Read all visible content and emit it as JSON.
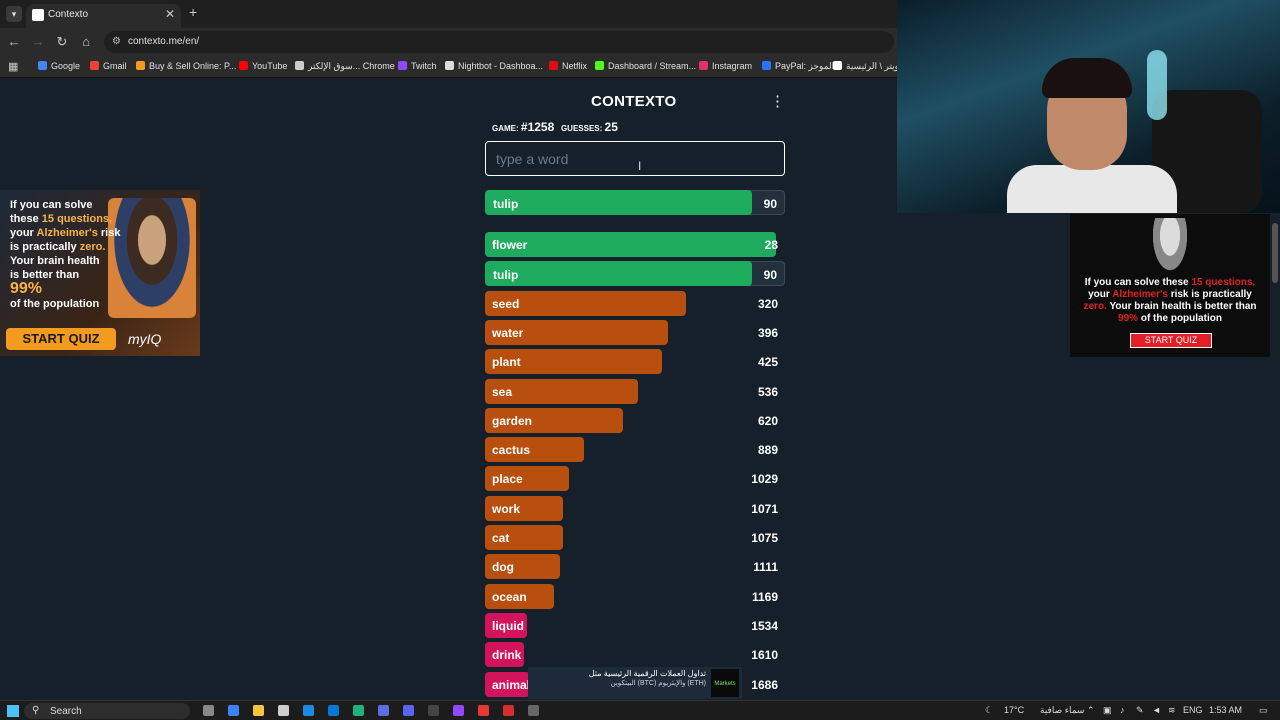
{
  "browser": {
    "tab_title": "Contexto",
    "url": "contexto.me/en/",
    "bookmarks": [
      {
        "label": "Google",
        "color": "#4285f4"
      },
      {
        "label": "Gmail",
        "color": "#ea4335"
      },
      {
        "label": "Buy & Sell Online: P...",
        "color": "#f29b1f"
      },
      {
        "label": "YouTube",
        "color": "#ff0000"
      },
      {
        "label": "سوق الإلكتر... Chrome",
        "color": "#cccccc"
      },
      {
        "label": "Twitch",
        "color": "#9146ff"
      },
      {
        "label": "Nightbot - Dashboa...",
        "color": "#dddddd"
      },
      {
        "label": "Netflix",
        "color": "#e50914"
      },
      {
        "label": "Dashboard / Stream...",
        "color": "#53fc18"
      },
      {
        "label": "Instagram",
        "color": "#e1306c"
      },
      {
        "label": "PayPal: الموجز",
        "color": "#2b73ff"
      },
      {
        "label": "تويتر \\ الرئيسية",
        "color": "#ffffff"
      }
    ]
  },
  "game": {
    "title": "CONTEXTO",
    "game_label": "GAME:",
    "game_number": "#1258",
    "guesses_label": "GUESSES:",
    "guesses_count": "25",
    "input_placeholder": "type a word",
    "last_guess": {
      "word": "tulip",
      "rank": "90",
      "fill": 0.89,
      "color": "#1fab5e"
    },
    "guesses": [
      {
        "word": "flower",
        "rank": "28",
        "fill": 0.97,
        "color": "#1fab5e"
      },
      {
        "word": "tulip",
        "rank": "90",
        "fill": 0.89,
        "color": "#1fab5e"
      },
      {
        "word": "seed",
        "rank": "320",
        "fill": 0.67,
        "color": "#b94f0e"
      },
      {
        "word": "water",
        "rank": "396",
        "fill": 0.61,
        "color": "#b94f0e"
      },
      {
        "word": "plant",
        "rank": "425",
        "fill": 0.59,
        "color": "#b94f0e"
      },
      {
        "word": "sea",
        "rank": "536",
        "fill": 0.51,
        "color": "#b94f0e"
      },
      {
        "word": "garden",
        "rank": "620",
        "fill": 0.46,
        "color": "#b94f0e"
      },
      {
        "word": "cactus",
        "rank": "889",
        "fill": 0.33,
        "color": "#b94f0e"
      },
      {
        "word": "place",
        "rank": "1029",
        "fill": 0.28,
        "color": "#b94f0e"
      },
      {
        "word": "work",
        "rank": "1071",
        "fill": 0.26,
        "color": "#b94f0e"
      },
      {
        "word": "cat",
        "rank": "1075",
        "fill": 0.26,
        "color": "#b94f0e"
      },
      {
        "word": "dog",
        "rank": "1111",
        "fill": 0.25,
        "color": "#b94f0e"
      },
      {
        "word": "ocean",
        "rank": "1169",
        "fill": 0.23,
        "color": "#b94f0e"
      },
      {
        "word": "liquid",
        "rank": "1534",
        "fill": 0.14,
        "color": "#d3145a"
      },
      {
        "word": "drink",
        "rank": "1610",
        "fill": 0.13,
        "color": "#d3145a"
      },
      {
        "word": "animal",
        "rank": "1686",
        "fill": 0.15,
        "color": "#d3145a"
      }
    ]
  },
  "ad_left": {
    "line1": "If you can solve",
    "line2a": "these ",
    "line2b": "15 questions,",
    "line3a": "your ",
    "line3b": "Alzheimer's",
    "line3c": " risk",
    "line4a": "is practically ",
    "line4b": "zero.",
    "line5": "Your brain health",
    "line6": "is better than",
    "line7": "99%",
    "line8": "of the population",
    "cta": "START QUIZ",
    "brand": "myIQ"
  },
  "ad_right": {
    "p1": "If you can solve these ",
    "p2": "15 questions,",
    "p3": " your ",
    "p4": "Alzheimer's",
    "p5": " risk is practically ",
    "p6": "zero.",
    "p7": " Your brain health is better than ",
    "p8": "99%",
    "p9": " of the population",
    "cta": "START QUIZ"
  },
  "bottom_ad": {
    "line1": "تداول العملات الرقمية الرئيسية مثل",
    "line2": "البيتكوين (BTC) والإيثريوم (ETH)",
    "brand": "Markets"
  },
  "taskbar": {
    "search_label": "Search",
    "weather": "17°C",
    "weather_desc": "سماء صافية",
    "lang": "ENG",
    "time": "1:53 AM"
  }
}
